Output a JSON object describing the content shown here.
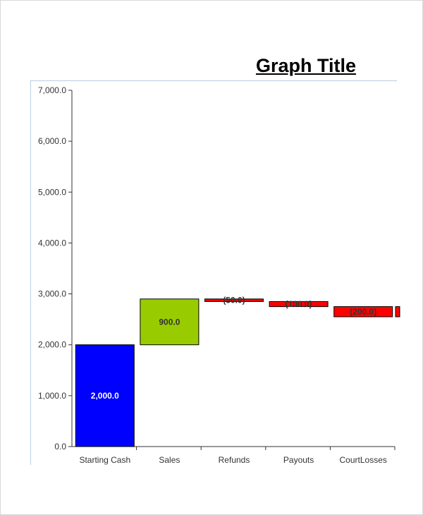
{
  "chart_data": {
    "type": "bar",
    "subtype": "waterfall",
    "title": "Graph Title",
    "xlabel": "",
    "ylabel": "",
    "ylim": [
      0,
      7000
    ],
    "yticks": [
      "0.0",
      "1,000.0",
      "2,000.0",
      "3,000.0",
      "4,000.0",
      "5,000.0",
      "6,000.0",
      "7,000.0"
    ],
    "ytick_values": [
      0,
      1000,
      2000,
      3000,
      4000,
      5000,
      6000,
      7000
    ],
    "grid": false,
    "legend": "none",
    "categories": [
      "Starting Cash",
      "Sales",
      "Refunds",
      "Payouts",
      "CourtLosses"
    ],
    "bars": [
      {
        "category": "Starting Cash",
        "start": 0,
        "end": 2000,
        "label": "2,000.0",
        "color": "#0000ff",
        "label_color": "#ffffff"
      },
      {
        "category": "Sales",
        "start": 2000,
        "end": 2900,
        "label": "900.0",
        "color": "#99cc00",
        "label_color": "#333333"
      },
      {
        "category": "Refunds",
        "start": 2900,
        "end": 2850,
        "label": "(50.0)",
        "color": "#ff0000",
        "label_color": "#333333"
      },
      {
        "category": "Payouts",
        "start": 2850,
        "end": 2750,
        "label": "(100.0)",
        "color": "#ff0000",
        "label_color": "#333333"
      },
      {
        "category": "CourtLosses",
        "start": 2750,
        "end": 2550,
        "label": "(200.0)",
        "color": "#ff0000",
        "label_color": "#333333"
      }
    ],
    "partial_bar": {
      "start": 2550,
      "end": 2750,
      "color": "#ff0000"
    }
  }
}
